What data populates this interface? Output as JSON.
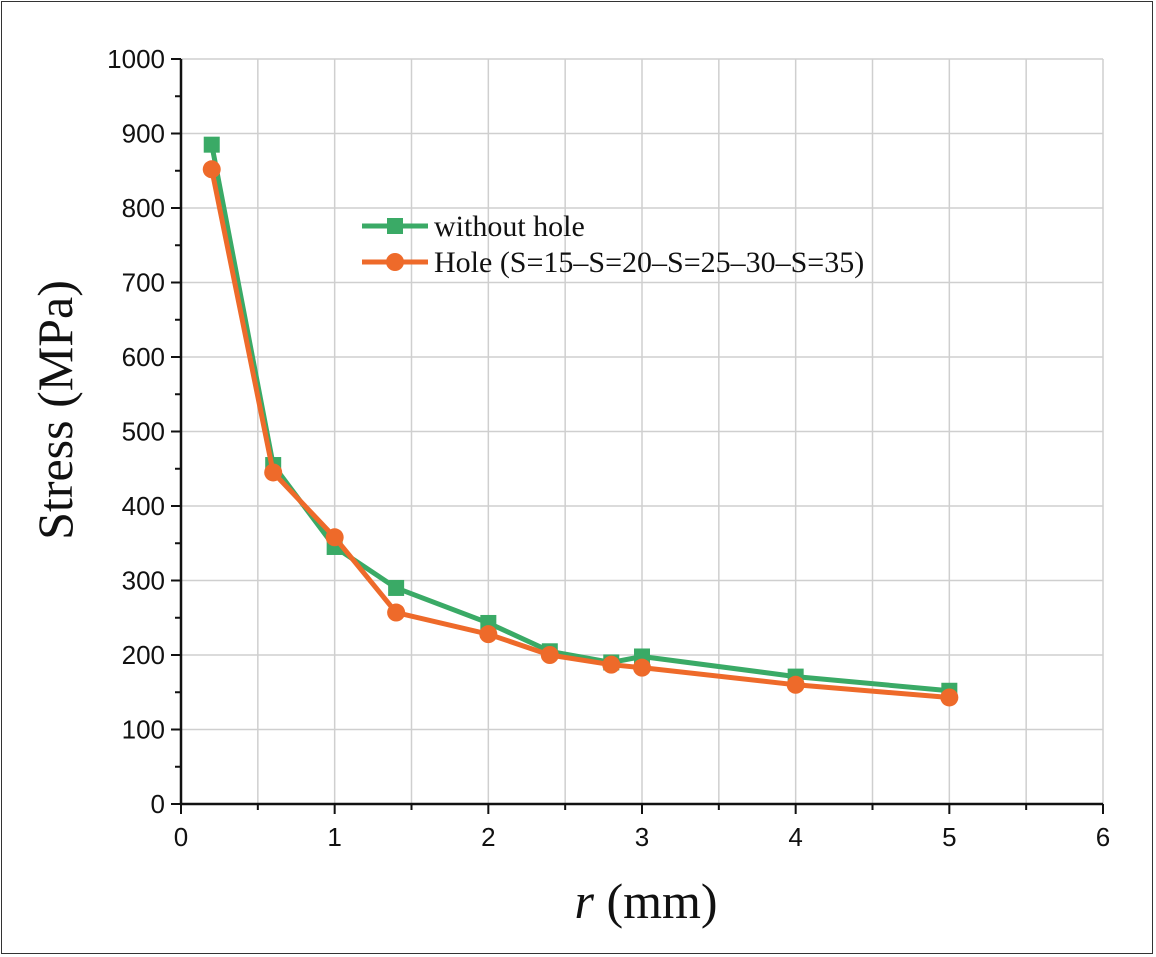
{
  "chart_data": {
    "type": "line",
    "xlabel_var": "r",
    "xlabel_unit": " (mm)",
    "ylabel": "Stress (MPa)",
    "xlim": [
      0,
      6
    ],
    "ylim": [
      0,
      1000
    ],
    "xticks": [
      "0",
      "1",
      "2",
      "3",
      "4",
      "5",
      "6"
    ],
    "yticks": [
      "0",
      "100",
      "200",
      "300",
      "400",
      "500",
      "600",
      "700",
      "800",
      "900",
      "1000"
    ],
    "grid": true,
    "legend_position": "upper-center",
    "series": [
      {
        "name": "without hole",
        "color": "#3aaa66",
        "marker": "square",
        "x": [
          0.2,
          0.6,
          1.0,
          1.4,
          2.0,
          2.4,
          2.8,
          3.0,
          4.0,
          5.0
        ],
        "y": [
          885,
          455,
          345,
          290,
          243,
          205,
          190,
          198,
          171,
          152
        ]
      },
      {
        "name": "Hole (S=15–S=20–S=25–30–S=35)",
        "color": "#ee6a2a",
        "marker": "circle",
        "x": [
          0.2,
          0.6,
          1.0,
          1.4,
          2.0,
          2.4,
          2.8,
          3.0,
          4.0,
          5.0
        ],
        "y": [
          852,
          445,
          358,
          257,
          228,
          200,
          187,
          183,
          160,
          143
        ]
      }
    ]
  }
}
